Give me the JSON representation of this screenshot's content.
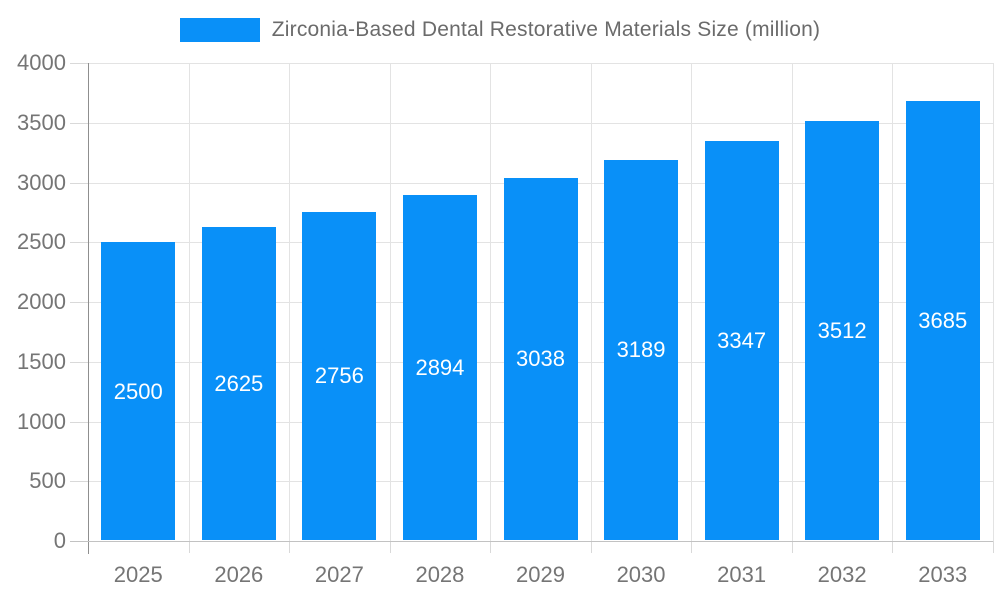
{
  "chart_data": {
    "type": "bar",
    "title": "Zirconia-Based Dental Restorative Materials Size (million)",
    "categories": [
      "2025",
      "2026",
      "2027",
      "2028",
      "2029",
      "2030",
      "2031",
      "2032",
      "2033"
    ],
    "values": [
      2500,
      2625,
      2756,
      2894,
      3038,
      3189,
      3347,
      3512,
      3685
    ],
    "series": [
      {
        "name": "Zirconia-Based Dental Restorative Materials Size (million)",
        "values": [
          2500,
          2625,
          2756,
          2894,
          3038,
          3189,
          3347,
          3512,
          3685
        ]
      }
    ],
    "xlabel": "",
    "ylabel": "",
    "ylim": [
      0,
      4000
    ],
    "ytick_interval": 500,
    "yticks": [
      0,
      500,
      1000,
      1500,
      2000,
      2500,
      3000,
      3500,
      4000
    ],
    "grid": true,
    "legend_position": "top",
    "bar_labels_inside": true
  },
  "colors": {
    "bar": "#0990f8",
    "bar_label": "#ffffff",
    "legend_text": "#6b6b6b",
    "axis_text": "#757575",
    "gridline": "#e3e3e3",
    "y_axis_line": "#8f8f8f",
    "x_base_line": "#c2c2c2",
    "background": "#ffffff"
  }
}
